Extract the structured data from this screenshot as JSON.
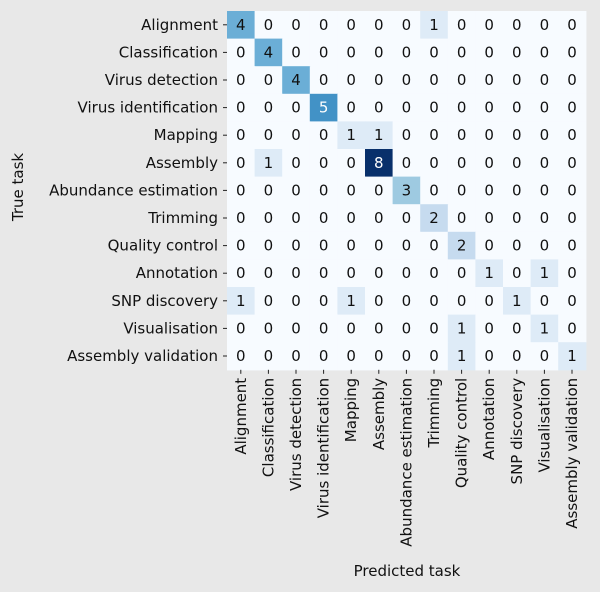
{
  "chart_data": {
    "type": "heatmap",
    "title": "",
    "xlabel": "Predicted task",
    "ylabel": "True task",
    "colormap": "Blues",
    "vmin": 0,
    "vmax": 8,
    "colorbar": false,
    "labels": [
      "Alignment",
      "Classification",
      "Virus detection",
      "Virus identification",
      "Mapping",
      "Assembly",
      "Abundance estimation",
      "Trimming",
      "Quality control",
      "Annotation",
      "SNP discovery",
      "Visualisation",
      "Assembly validation"
    ],
    "matrix": [
      [
        4,
        0,
        0,
        0,
        0,
        0,
        0,
        1,
        0,
        0,
        0,
        0,
        0
      ],
      [
        0,
        4,
        0,
        0,
        0,
        0,
        0,
        0,
        0,
        0,
        0,
        0,
        0
      ],
      [
        0,
        0,
        4,
        0,
        0,
        0,
        0,
        0,
        0,
        0,
        0,
        0,
        0
      ],
      [
        0,
        0,
        0,
        5,
        0,
        0,
        0,
        0,
        0,
        0,
        0,
        0,
        0
      ],
      [
        0,
        0,
        0,
        0,
        1,
        1,
        0,
        0,
        0,
        0,
        0,
        0,
        0
      ],
      [
        0,
        1,
        0,
        0,
        0,
        8,
        0,
        0,
        0,
        0,
        0,
        0,
        0
      ],
      [
        0,
        0,
        0,
        0,
        0,
        0,
        3,
        0,
        0,
        0,
        0,
        0,
        0
      ],
      [
        0,
        0,
        0,
        0,
        0,
        0,
        0,
        2,
        0,
        0,
        0,
        0,
        0
      ],
      [
        0,
        0,
        0,
        0,
        0,
        0,
        0,
        0,
        2,
        0,
        0,
        0,
        0
      ],
      [
        0,
        0,
        0,
        0,
        0,
        0,
        0,
        0,
        0,
        1,
        0,
        1,
        0
      ],
      [
        1,
        0,
        0,
        0,
        1,
        0,
        0,
        0,
        0,
        0,
        1,
        0,
        0
      ],
      [
        0,
        0,
        0,
        0,
        0,
        0,
        0,
        0,
        1,
        0,
        0,
        1,
        0
      ],
      [
        0,
        0,
        0,
        0,
        0,
        0,
        0,
        0,
        1,
        0,
        0,
        0,
        1
      ]
    ]
  }
}
